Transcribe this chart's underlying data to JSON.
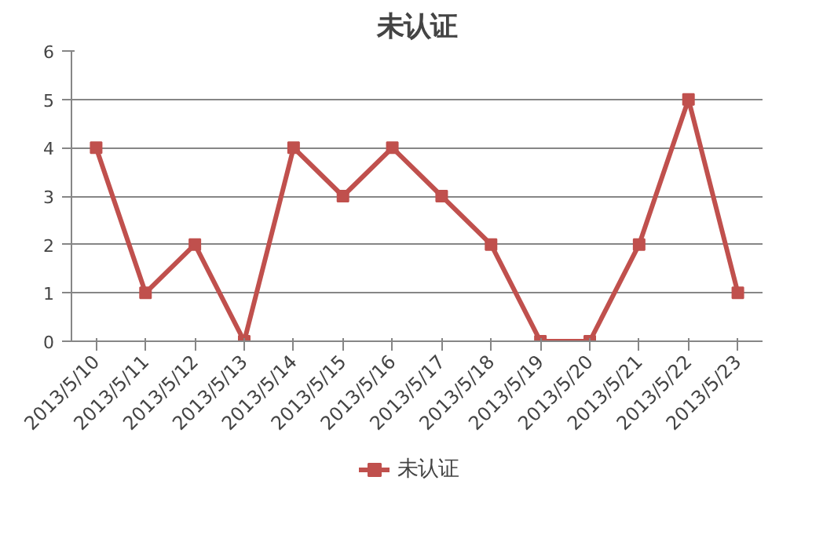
{
  "chart_data": {
    "type": "line",
    "title": "未认证",
    "categories": [
      "2013/5/10",
      "2013/5/11",
      "2013/5/12",
      "2013/5/13",
      "2013/5/14",
      "2013/5/15",
      "2013/5/16",
      "2013/5/17",
      "2013/5/18",
      "2013/5/19",
      "2013/5/20",
      "2013/5/21",
      "2013/5/22",
      "2013/5/23"
    ],
    "series": [
      {
        "name": "未认证",
        "color": "#c0504d",
        "values": [
          4,
          1,
          2,
          0,
          4,
          3,
          4,
          3,
          2,
          0,
          0,
          2,
          5,
          1
        ]
      }
    ],
    "ylim": [
      0,
      6
    ],
    "yticks": [
      0,
      1,
      2,
      3,
      4,
      5,
      6
    ],
    "grid": "y",
    "legend": "bottom",
    "marker": "square",
    "line_style": "solid"
  }
}
